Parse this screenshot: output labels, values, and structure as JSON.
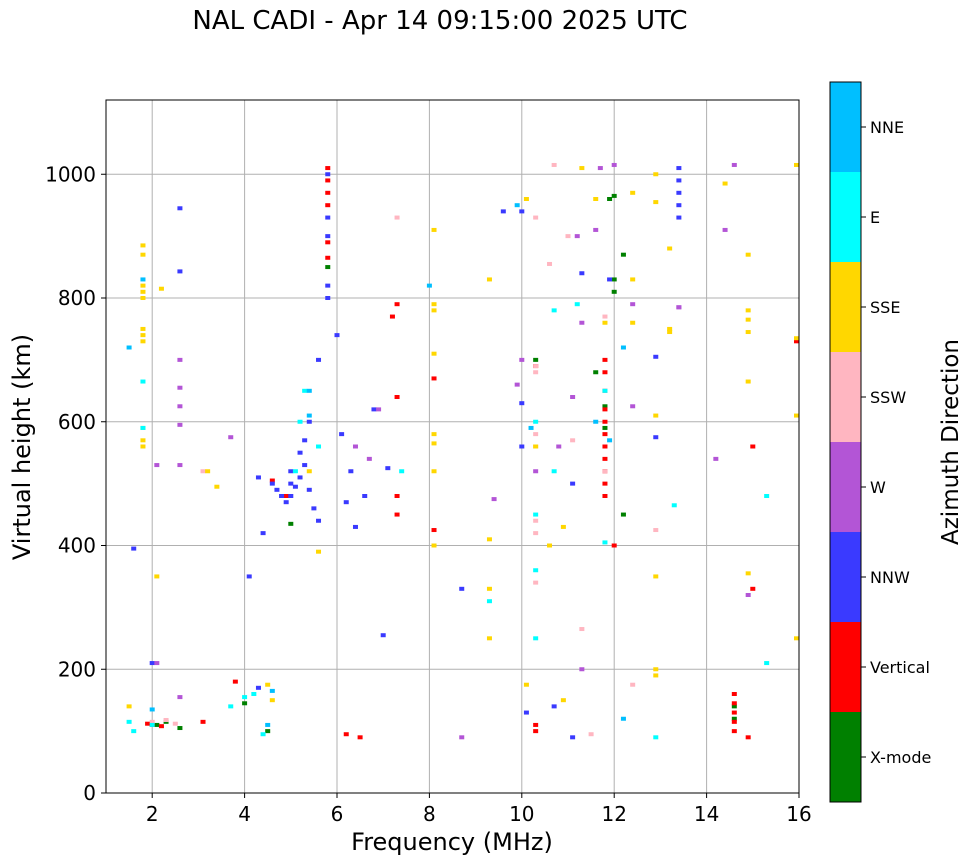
{
  "chart_data": {
    "type": "scatter",
    "title": "NAL CADI - Apr 14 09:15:00 2025 UTC",
    "xlabel": "Frequency (MHz)",
    "ylabel": "Virtual height (km)",
    "xlim": [
      1,
      16
    ],
    "ylim": [
      0,
      1120
    ],
    "xticks": [
      2,
      4,
      6,
      8,
      10,
      12,
      14,
      16
    ],
    "yticks": [
      0,
      200,
      400,
      600,
      800,
      1000
    ],
    "grid": true,
    "colorbar": {
      "label": "Azimuth Direction",
      "categories": [
        {
          "name": "X-mode",
          "color": "#008000"
        },
        {
          "name": "Vertical",
          "color": "#ff0000"
        },
        {
          "name": "NNW",
          "color": "#3a3aff"
        },
        {
          "name": "W",
          "color": "#b355d6"
        },
        {
          "name": "SSW",
          "color": "#ffb6c1"
        },
        {
          "name": "SSE",
          "color": "#ffd700"
        },
        {
          "name": "E",
          "color": "#00ffff"
        },
        {
          "name": "NNE",
          "color": "#00bfff"
        }
      ]
    },
    "series": [
      {
        "name": "X-mode",
        "points": [
          [
            2.1,
            110
          ],
          [
            2.3,
            115
          ],
          [
            4.0,
            145
          ],
          [
            4.5,
            100
          ],
          [
            5.0,
            435
          ],
          [
            5.8,
            850
          ],
          [
            10.3,
            700
          ],
          [
            11.8,
            590
          ],
          [
            11.8,
            625
          ],
          [
            11.9,
            960
          ],
          [
            12.0,
            965
          ],
          [
            12.0,
            830
          ],
          [
            12.0,
            810
          ],
          [
            12.2,
            870
          ],
          [
            12.2,
            450
          ],
          [
            14.6,
            140
          ],
          [
            14.6,
            120
          ],
          [
            11.6,
            680
          ],
          [
            2.6,
            105
          ]
        ]
      },
      {
        "name": "Vertical",
        "points": [
          [
            1.9,
            112
          ],
          [
            2.0,
            110
          ],
          [
            2.2,
            108
          ],
          [
            3.1,
            115
          ],
          [
            3.8,
            180
          ],
          [
            4.6,
            505
          ],
          [
            4.9,
            480
          ],
          [
            5.8,
            1010
          ],
          [
            5.8,
            990
          ],
          [
            5.8,
            970
          ],
          [
            5.8,
            950
          ],
          [
            5.8,
            890
          ],
          [
            5.8,
            865
          ],
          [
            6.2,
            95
          ],
          [
            6.5,
            90
          ],
          [
            7.3,
            640
          ],
          [
            7.3,
            480
          ],
          [
            7.3,
            450
          ],
          [
            7.3,
            790
          ],
          [
            7.2,
            770
          ],
          [
            8.1,
            425
          ],
          [
            8.1,
            670
          ],
          [
            10.3,
            110
          ],
          [
            10.3,
            100
          ],
          [
            10.3,
            690
          ],
          [
            11.8,
            700
          ],
          [
            11.8,
            680
          ],
          [
            11.8,
            650
          ],
          [
            11.8,
            620
          ],
          [
            11.8,
            600
          ],
          [
            11.8,
            580
          ],
          [
            11.8,
            560
          ],
          [
            11.8,
            540
          ],
          [
            11.8,
            520
          ],
          [
            11.8,
            500
          ],
          [
            11.8,
            480
          ],
          [
            12.0,
            400
          ],
          [
            14.6,
            160
          ],
          [
            14.6,
            145
          ],
          [
            14.6,
            130
          ],
          [
            14.6,
            115
          ],
          [
            14.6,
            100
          ],
          [
            14.9,
            90
          ],
          [
            15.0,
            560
          ],
          [
            15.0,
            330
          ],
          [
            16,
            730
          ]
        ]
      },
      {
        "name": "NNW",
        "points": [
          [
            2.6,
            945
          ],
          [
            2.6,
            843
          ],
          [
            4.3,
            510
          ],
          [
            4.6,
            500
          ],
          [
            4.7,
            490
          ],
          [
            4.8,
            480
          ],
          [
            4.9,
            470
          ],
          [
            5.0,
            520
          ],
          [
            5.0,
            500
          ],
          [
            5.0,
            480
          ],
          [
            5.1,
            495
          ],
          [
            5.2,
            510
          ],
          [
            5.2,
            550
          ],
          [
            5.3,
            530
          ],
          [
            5.3,
            570
          ],
          [
            5.4,
            600
          ],
          [
            5.4,
            490
          ],
          [
            5.5,
            460
          ],
          [
            5.6,
            440
          ],
          [
            5.6,
            700
          ],
          [
            5.8,
            1000
          ],
          [
            5.8,
            930
          ],
          [
            5.8,
            900
          ],
          [
            5.8,
            820
          ],
          [
            5.8,
            800
          ],
          [
            6.0,
            740
          ],
          [
            6.1,
            580
          ],
          [
            6.2,
            470
          ],
          [
            6.3,
            520
          ],
          [
            6.4,
            430
          ],
          [
            6.6,
            480
          ],
          [
            6.8,
            620
          ],
          [
            7.0,
            255
          ],
          [
            7.1,
            525
          ],
          [
            4.1,
            350
          ],
          [
            4.3,
            170
          ],
          [
            4.4,
            420
          ],
          [
            2.0,
            210
          ],
          [
            1.6,
            395
          ],
          [
            9.6,
            940
          ],
          [
            10.0,
            940
          ],
          [
            10.0,
            630
          ],
          [
            10.0,
            560
          ],
          [
            10.1,
            130
          ],
          [
            10.7,
            140
          ],
          [
            11.1,
            500
          ],
          [
            11.1,
            90
          ],
          [
            11.3,
            840
          ],
          [
            11.9,
            830
          ],
          [
            13.4,
            1010
          ],
          [
            13.4,
            990
          ],
          [
            13.4,
            970
          ],
          [
            13.4,
            950
          ],
          [
            13.4,
            930
          ],
          [
            12.9,
            705
          ],
          [
            12.9,
            575
          ],
          [
            8.7,
            330
          ]
        ]
      },
      {
        "name": "W",
        "points": [
          [
            2.1,
            210
          ],
          [
            2.1,
            530
          ],
          [
            2.6,
            700
          ],
          [
            2.6,
            655
          ],
          [
            2.6,
            625
          ],
          [
            2.6,
            595
          ],
          [
            2.6,
            530
          ],
          [
            2.6,
            155
          ],
          [
            3.7,
            575
          ],
          [
            6.4,
            560
          ],
          [
            6.7,
            540
          ],
          [
            6.9,
            620
          ],
          [
            10.3,
            520
          ],
          [
            10.8,
            560
          ],
          [
            11.1,
            640
          ],
          [
            11.2,
            900
          ],
          [
            11.3,
            760
          ],
          [
            11.6,
            910
          ],
          [
            11.7,
            1010
          ],
          [
            11.3,
            200
          ],
          [
            12.0,
            1015
          ],
          [
            12.4,
            790
          ],
          [
            12.4,
            625
          ],
          [
            13.4,
            785
          ],
          [
            13.4,
            785
          ],
          [
            14.2,
            540
          ],
          [
            14.4,
            910
          ],
          [
            14.6,
            1015
          ],
          [
            14.9,
            320
          ],
          [
            8.7,
            90
          ],
          [
            9.4,
            475
          ],
          [
            9.9,
            660
          ],
          [
            10.0,
            700
          ]
        ]
      },
      {
        "name": "SSW",
        "points": [
          [
            2.0,
            115
          ],
          [
            2.3,
            118
          ],
          [
            2.5,
            112
          ],
          [
            3.1,
            520
          ],
          [
            7.3,
            930
          ],
          [
            10.3,
            930
          ],
          [
            10.3,
            580
          ],
          [
            10.3,
            560
          ],
          [
            10.3,
            440
          ],
          [
            10.3,
            420
          ],
          [
            10.3,
            680
          ],
          [
            10.3,
            690
          ],
          [
            10.3,
            340
          ],
          [
            10.6,
            855
          ],
          [
            11.0,
            900
          ],
          [
            11.1,
            570
          ],
          [
            11.3,
            265
          ],
          [
            11.5,
            95
          ],
          [
            11.8,
            770
          ],
          [
            11.8,
            650
          ],
          [
            11.8,
            520
          ],
          [
            12.4,
            175
          ],
          [
            12.9,
            425
          ],
          [
            10.7,
            1015
          ]
        ]
      },
      {
        "name": "SSE",
        "points": [
          [
            1.5,
            140
          ],
          [
            1.8,
            885
          ],
          [
            1.8,
            870
          ],
          [
            1.8,
            820
          ],
          [
            1.8,
            810
          ],
          [
            1.8,
            800
          ],
          [
            1.8,
            750
          ],
          [
            1.8,
            740
          ],
          [
            1.8,
            730
          ],
          [
            1.8,
            590
          ],
          [
            1.8,
            570
          ],
          [
            1.8,
            560
          ],
          [
            2.1,
            350
          ],
          [
            2.2,
            815
          ],
          [
            3.2,
            520
          ],
          [
            3.4,
            495
          ],
          [
            4.5,
            175
          ],
          [
            4.6,
            150
          ],
          [
            5.4,
            520
          ],
          [
            5.6,
            390
          ],
          [
            8.1,
            910
          ],
          [
            8.1,
            790
          ],
          [
            8.1,
            780
          ],
          [
            8.1,
            710
          ],
          [
            8.1,
            580
          ],
          [
            8.1,
            565
          ],
          [
            8.1,
            520
          ],
          [
            8.1,
            400
          ],
          [
            9.3,
            830
          ],
          [
            9.3,
            410
          ],
          [
            9.3,
            330
          ],
          [
            9.3,
            250
          ],
          [
            10.1,
            175
          ],
          [
            10.1,
            960
          ],
          [
            10.3,
            560
          ],
          [
            10.6,
            400
          ],
          [
            10.9,
            430
          ],
          [
            10.9,
            150
          ],
          [
            11.3,
            1010
          ],
          [
            11.6,
            960
          ],
          [
            11.8,
            760
          ],
          [
            12.4,
            970
          ],
          [
            12.4,
            830
          ],
          [
            12.4,
            760
          ],
          [
            12.9,
            1000
          ],
          [
            12.9,
            955
          ],
          [
            12.9,
            610
          ],
          [
            12.9,
            350
          ],
          [
            12.9,
            200
          ],
          [
            12.9,
            190
          ],
          [
            13.2,
            880
          ],
          [
            13.2,
            750
          ],
          [
            13.2,
            745
          ],
          [
            14.4,
            985
          ],
          [
            14.9,
            870
          ],
          [
            14.9,
            780
          ],
          [
            14.9,
            765
          ],
          [
            14.9,
            745
          ],
          [
            14.9,
            665
          ],
          [
            14.9,
            355
          ],
          [
            16,
            1015
          ],
          [
            16,
            610
          ],
          [
            16,
            250
          ],
          [
            16,
            735
          ]
        ]
      },
      {
        "name": "E",
        "points": [
          [
            1.5,
            115
          ],
          [
            1.6,
            100
          ],
          [
            1.8,
            665
          ],
          [
            1.8,
            590
          ],
          [
            2.0,
            110
          ],
          [
            3.7,
            140
          ],
          [
            4.0,
            155
          ],
          [
            4.2,
            160
          ],
          [
            4.4,
            95
          ],
          [
            5.3,
            650
          ],
          [
            5.2,
            600
          ],
          [
            5.1,
            520
          ],
          [
            5.6,
            560
          ],
          [
            7.4,
            520
          ],
          [
            9.3,
            310
          ],
          [
            10.3,
            250
          ],
          [
            10.3,
            360
          ],
          [
            10.3,
            600
          ],
          [
            10.3,
            450
          ],
          [
            10.7,
            520
          ],
          [
            10.7,
            780
          ],
          [
            11.2,
            790
          ],
          [
            11.8,
            650
          ],
          [
            11.8,
            405
          ],
          [
            12.9,
            90
          ],
          [
            13.3,
            465
          ],
          [
            15.3,
            480
          ],
          [
            15.3,
            210
          ]
        ]
      },
      {
        "name": "NNE",
        "points": [
          [
            1.5,
            720
          ],
          [
            1.8,
            830
          ],
          [
            2.0,
            135
          ],
          [
            4.5,
            110
          ],
          [
            4.6,
            165
          ],
          [
            5.4,
            650
          ],
          [
            5.4,
            610
          ],
          [
            8.0,
            820
          ],
          [
            10.2,
            590
          ],
          [
            11.6,
            600
          ],
          [
            11.9,
            570
          ],
          [
            12.2,
            720
          ],
          [
            12.2,
            120
          ],
          [
            9.9,
            950
          ]
        ]
      }
    ]
  }
}
